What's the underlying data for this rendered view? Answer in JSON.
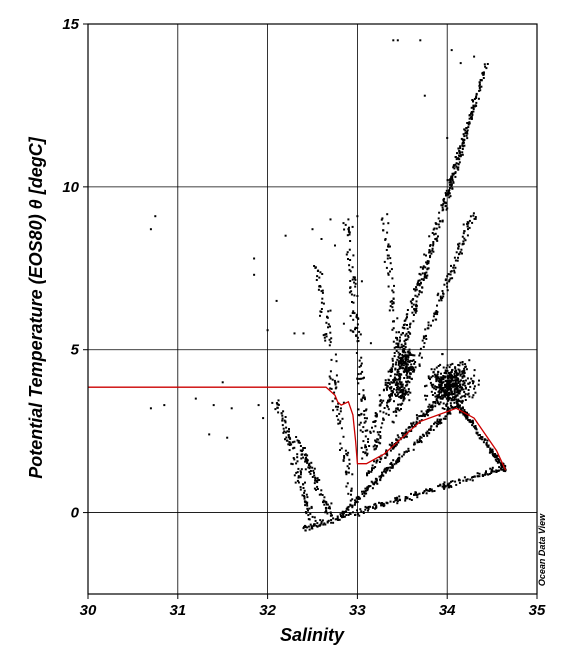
{
  "chart_data": {
    "type": "scatter",
    "xlabel": "Salinity",
    "ylabel": "Potential Temperature (EOS80)  θ [degC]",
    "xlim": [
      30,
      35
    ],
    "ylim": [
      -2.5,
      15
    ],
    "x_ticks": [
      "30",
      "31",
      "32",
      "33",
      "34",
      "35"
    ],
    "y_ticks": [
      "0",
      "5",
      "10",
      "15"
    ],
    "grid": true,
    "watermark": "Ocean Data View",
    "colors": {
      "points": "#000000",
      "highlight_profile": "#cc0000",
      "grid": "#000000"
    },
    "clusters": [
      {
        "x0": 33.2,
        "y0": 2.0,
        "x1": 34.45,
        "y1": 13.9,
        "n": 260,
        "jx": 0.035,
        "jy": 0.2
      },
      {
        "x0": 33.05,
        "y0": 1.6,
        "x1": 34.3,
        "y1": 12.5,
        "n": 200,
        "jx": 0.04,
        "jy": 0.2
      },
      {
        "x0": 33.4,
        "y0": 2.8,
        "x1": 34.3,
        "y1": 9.2,
        "n": 150,
        "jx": 0.05,
        "jy": 0.3
      },
      {
        "x0": 32.4,
        "y0": -0.5,
        "x1": 34.65,
        "y1": 1.4,
        "n": 220,
        "jx": 0.03,
        "jy": 0.15
      },
      {
        "x0": 32.8,
        "y0": -0.1,
        "x1": 34.1,
        "y1": 3.3,
        "n": 200,
        "jx": 0.03,
        "jy": 0.15
      },
      {
        "x0": 33.1,
        "y0": 1.2,
        "x1": 34.05,
        "y1": 3.9,
        "n": 160,
        "jx": 0.04,
        "jy": 0.2
      },
      {
        "x0": 34.1,
        "y0": 3.4,
        "x1": 34.65,
        "y1": 1.3,
        "n": 150,
        "jx": 0.03,
        "jy": 0.15
      },
      {
        "x0": 32.9,
        "y0": 8.8,
        "x1": 33.1,
        "y1": 1.8,
        "n": 120,
        "jx": 0.08,
        "jy": 0.2
      },
      {
        "x0": 32.55,
        "y0": 7.5,
        "x1": 32.95,
        "y1": 0.2,
        "n": 110,
        "jx": 0.08,
        "jy": 0.2
      },
      {
        "x0": 32.1,
        "y0": 3.5,
        "x1": 32.5,
        "y1": -0.3,
        "n": 110,
        "jx": 0.07,
        "jy": 0.2
      },
      {
        "x0": 32.3,
        "y0": 2.4,
        "x1": 32.7,
        "y1": 0.0,
        "n": 90,
        "jx": 0.06,
        "jy": 0.2
      },
      {
        "x0": 33.3,
        "y0": 9.1,
        "x1": 33.5,
        "y1": 3.5,
        "n": 90,
        "jx": 0.06,
        "jy": 0.3
      }
    ],
    "blobs": [
      {
        "cx": 34.05,
        "cy": 3.9,
        "rx": 0.35,
        "ry": 1.0,
        "n": 420
      },
      {
        "cx": 33.55,
        "cy": 4.6,
        "rx": 0.15,
        "ry": 0.7,
        "n": 120
      },
      {
        "cx": 33.45,
        "cy": 3.8,
        "rx": 0.18,
        "ry": 0.5,
        "n": 80
      }
    ],
    "scatter_points": [
      [
        30.7,
        8.7
      ],
      [
        30.75,
        9.1
      ],
      [
        30.7,
        3.2
      ],
      [
        30.85,
        3.3
      ],
      [
        31.5,
        4.0
      ],
      [
        31.2,
        3.5
      ],
      [
        31.4,
        3.3
      ],
      [
        31.6,
        3.2
      ],
      [
        31.35,
        2.4
      ],
      [
        31.55,
        2.3
      ],
      [
        31.85,
        7.8
      ],
      [
        31.85,
        7.3
      ],
      [
        32.0,
        5.6
      ],
      [
        32.2,
        8.5
      ],
      [
        32.5,
        8.7
      ],
      [
        32.6,
        8.4
      ],
      [
        32.1,
        6.5
      ],
      [
        32.3,
        5.5
      ],
      [
        32.4,
        5.5
      ],
      [
        31.9,
        3.3
      ],
      [
        31.95,
        2.9
      ],
      [
        32.6,
        6.8
      ],
      [
        32.7,
        6.2
      ],
      [
        33.4,
        14.5
      ],
      [
        33.45,
        14.5
      ],
      [
        33.7,
        14.5
      ],
      [
        33.75,
        12.8
      ],
      [
        34.05,
        14.2
      ],
      [
        34.15,
        13.8
      ],
      [
        34.0,
        11.5
      ],
      [
        34.3,
        14.0
      ],
      [
        32.7,
        9.0
      ],
      [
        32.9,
        9.0
      ],
      [
        33.0,
        9.1
      ],
      [
        32.75,
        8.2
      ],
      [
        33.35,
        3.0
      ],
      [
        33.15,
        5.2
      ],
      [
        33.05,
        7.1
      ],
      [
        32.85,
        5.8
      ]
    ],
    "highlight_profile": {
      "name": "",
      "x": [
        30.0,
        32.65,
        32.75,
        32.78,
        32.82,
        32.9,
        32.95,
        32.98,
        33.0,
        33.05,
        33.1,
        33.3,
        33.5,
        33.7,
        33.9,
        34.1,
        34.3,
        34.55,
        34.65
      ],
      "y": [
        3.85,
        3.85,
        3.6,
        3.4,
        3.3,
        3.4,
        3.0,
        2.2,
        1.5,
        1.5,
        1.5,
        1.8,
        2.3,
        2.8,
        3.0,
        3.2,
        2.9,
        1.9,
        1.3
      ]
    }
  }
}
